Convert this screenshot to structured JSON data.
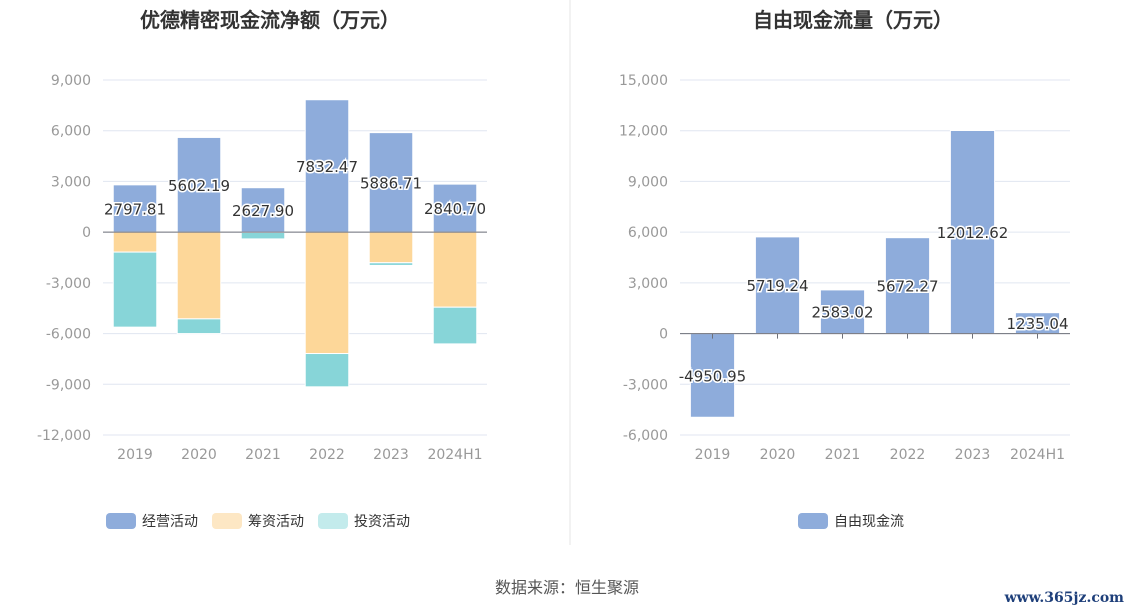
{
  "chart_data": [
    {
      "type": "bar",
      "stacked": true,
      "title": "优德精密现金流净额（万元）",
      "categories": [
        "2019",
        "2020",
        "2021",
        "2022",
        "2023",
        "2024H1"
      ],
      "series": [
        {
          "name": "经营活动",
          "color": "#8eacdb",
          "values": [
            2797.81,
            5602.19,
            2627.9,
            7832.47,
            5886.71,
            2840.7
          ],
          "labels": [
            "2797.81",
            "5602.19",
            "2627.90",
            "7832.47",
            "5886.71",
            "2840.70"
          ]
        },
        {
          "name": "筹资活动",
          "color": "#fdd799",
          "values": [
            -1180,
            -5130,
            -20,
            -7180,
            -1810,
            -4440
          ]
        },
        {
          "name": "投资活动",
          "color": "#87d5d8",
          "values": [
            -4440,
            -870,
            -380,
            -1970,
            -160,
            -2170
          ]
        }
      ],
      "ylim": [
        -12000,
        9000
      ],
      "yticks": [
        "9,000",
        "6,000",
        "3,000",
        "0",
        "-3,000",
        "-6,000",
        "-9,000",
        "-12,000"
      ],
      "legend": "bottom"
    },
    {
      "type": "bar",
      "title": "自由现金流量（万元）",
      "categories": [
        "2019",
        "2020",
        "2021",
        "2022",
        "2023",
        "2024H1"
      ],
      "series": [
        {
          "name": "自由现金流",
          "color": "#8eacdb",
          "values": [
            -4950.95,
            5719.24,
            2583.02,
            5672.27,
            12012.62,
            1235.04
          ],
          "labels": [
            "-4950.95",
            "5719.24",
            "2583.02",
            "5672.27",
            "12012.62",
            "1235.04"
          ]
        }
      ],
      "ylim": [
        -6000,
        15000
      ],
      "yticks": [
        "15,000",
        "12,000",
        "9,000",
        "6,000",
        "3,000",
        "0",
        "-3,000",
        "-6,000"
      ],
      "legend": "bottom"
    }
  ],
  "source": "数据来源：恒生聚源",
  "watermark": "www.365jz.com"
}
